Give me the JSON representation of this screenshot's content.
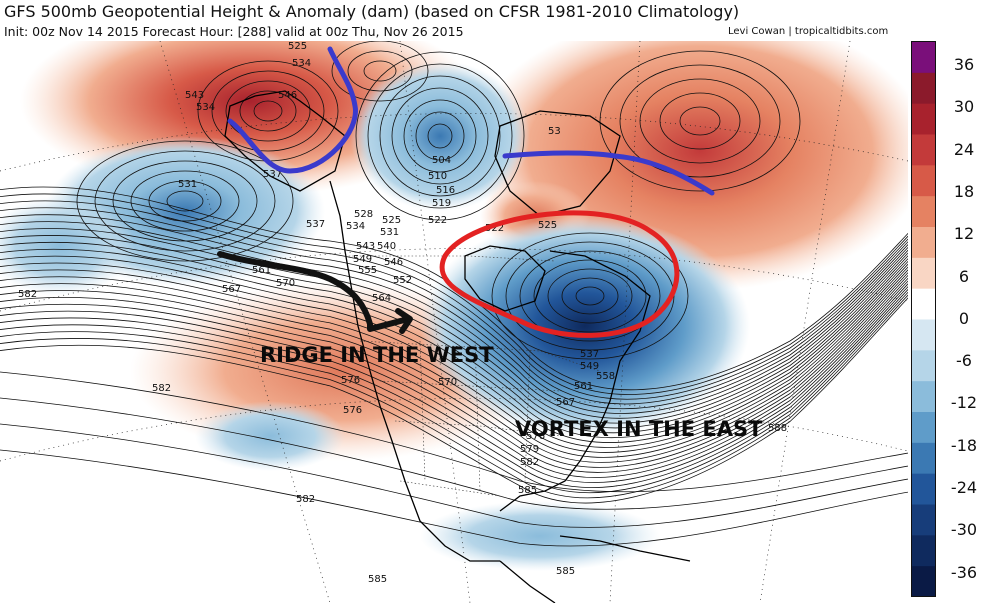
{
  "header": {
    "title": "GFS 500mb Geopotential Height & Anomaly (dam) (based on CFSR 1981-2010 Climatology)",
    "subtitle": "Init: 00z Nov 14 2015   Forecast Hour: [288]   valid at 00z Thu, Nov 26 2015",
    "credit": "Levi Cowan | tropicaltidbits.com"
  },
  "colorbar": {
    "ticks": [
      "36",
      "30",
      "24",
      "18",
      "12",
      "6",
      "0",
      "-6",
      "-12",
      "-18",
      "-24",
      "-30",
      "-36"
    ],
    "colors": [
      "#7a0f7a",
      "#8b1a2b",
      "#a8222d",
      "#c33a3a",
      "#d75a48",
      "#e58262",
      "#f1ad8f",
      "#f9d6c4",
      "#ffffff",
      "#d6e7f2",
      "#b5d5e8",
      "#8bbcdb",
      "#5f9cc9",
      "#3b79b3",
      "#22569a",
      "#173d7a",
      "#0f2a5e",
      "#0a1a45"
    ]
  },
  "annotations": {
    "ridge": "RIDGE IN THE WEST",
    "vortex": "VORTEX IN THE EAST"
  },
  "contour_labels": [
    "525",
    "534",
    "546",
    "543",
    "534",
    "537",
    "531",
    "537",
    "528",
    "534",
    "525",
    "531",
    "522",
    "516",
    "519",
    "510",
    "504",
    "53",
    "522",
    "525",
    "543",
    "540",
    "549",
    "546",
    "555",
    "552",
    "561",
    "567",
    "570",
    "564",
    "582",
    "582",
    "576",
    "576",
    "570",
    "537",
    "549",
    "558",
    "561",
    "567",
    "576",
    "579",
    "582",
    "588",
    "585",
    "582",
    "585",
    "585"
  ]
}
